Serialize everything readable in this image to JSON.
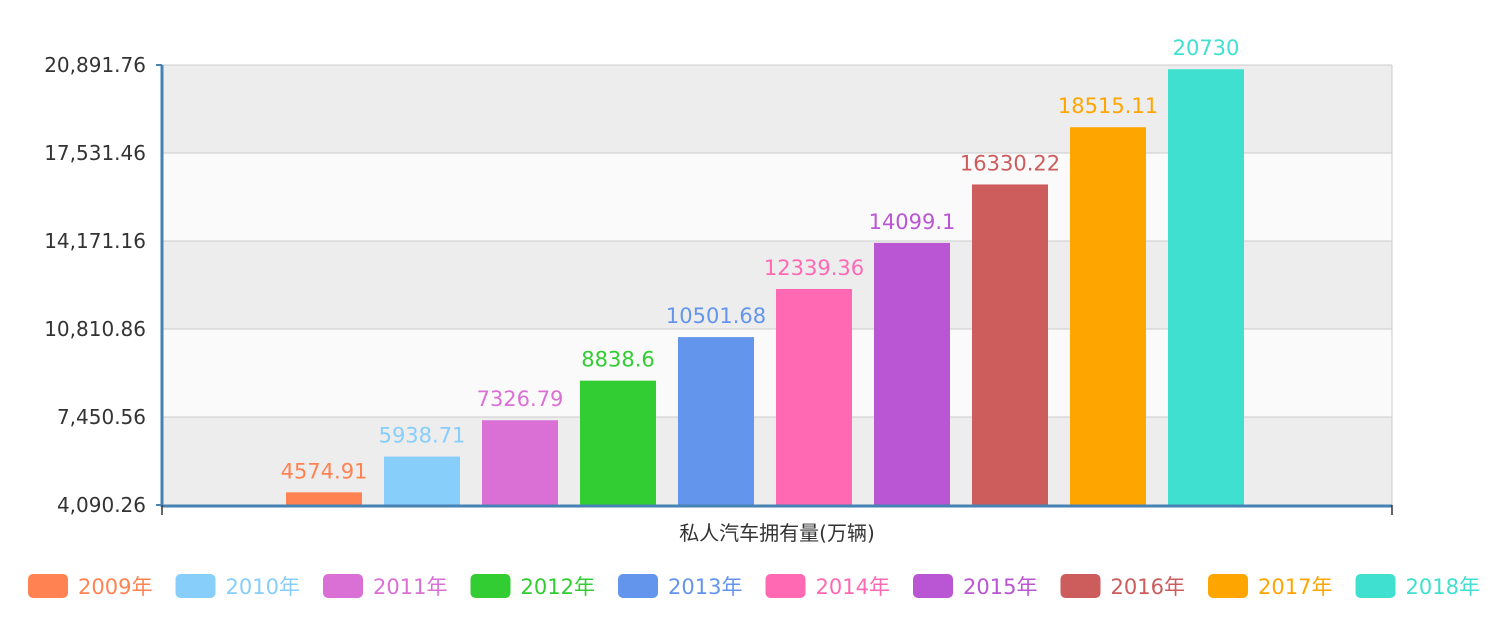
{
  "chart_data": {
    "type": "bar",
    "xlabel": "私人汽车拥有量(万辆)",
    "ylim": [
      4090.26,
      20891.76
    ],
    "yticks": [
      "4,090.26",
      "7,450.56",
      "10,810.86",
      "14,171.16",
      "17,531.46",
      "20,891.76"
    ],
    "ytick_values": [
      4090.26,
      7450.56,
      10810.86,
      14171.16,
      17531.46,
      20891.76
    ],
    "grid": true,
    "legend_position": "bottom",
    "series": [
      {
        "name": "2009年",
        "value": 4574.91,
        "label": "4574.91",
        "color": "#ff8352"
      },
      {
        "name": "2010年",
        "value": 5938.71,
        "label": "5938.71",
        "color": "#87cefa"
      },
      {
        "name": "2011年",
        "value": 7326.79,
        "label": "7326.79",
        "color": "#da70d6"
      },
      {
        "name": "2012年",
        "value": 8838.6,
        "label": "8838.6",
        "color": "#32cd32"
      },
      {
        "name": "2013年",
        "value": 10501.68,
        "label": "10501.68",
        "color": "#6495ed"
      },
      {
        "name": "2014年",
        "value": 12339.36,
        "label": "12339.36",
        "color": "#ff69b4"
      },
      {
        "name": "2015年",
        "value": 14099.1,
        "label": "14099.1",
        "color": "#ba55d3"
      },
      {
        "name": "2016年",
        "value": 16330.22,
        "label": "16330.22",
        "color": "#cd5c5c"
      },
      {
        "name": "2017年",
        "value": 18515.11,
        "label": "18515.11",
        "color": "#ffa500"
      },
      {
        "name": "2018年",
        "value": 20730,
        "label": "20730",
        "color": "#40e0d0"
      }
    ]
  }
}
